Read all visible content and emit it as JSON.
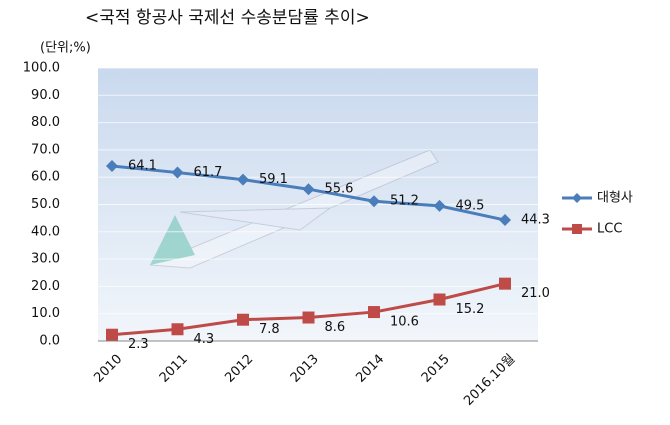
{
  "chart_data": {
    "type": "line",
    "title": "<국적 항공사 국제선 수송분담률 추이>",
    "unit_label": "(단위;%)",
    "categories": [
      "2010",
      "2011",
      "2012",
      "2013",
      "2014",
      "2015",
      "2016.10월"
    ],
    "series": [
      {
        "name": "대형사",
        "color": "#4a7ebb",
        "marker": "diamond",
        "values": [
          64.1,
          61.7,
          59.1,
          55.6,
          51.2,
          49.5,
          44.3
        ]
      },
      {
        "name": "LCC",
        "color": "#be4b48",
        "marker": "square",
        "values": [
          2.3,
          4.3,
          7.8,
          8.6,
          10.6,
          15.2,
          21.0
        ],
        "value_labels": [
          "2.3",
          "4.3",
          "7.8",
          "8.6",
          "10.6",
          "15.2",
          "21.0"
        ]
      }
    ],
    "ylim": [
      0,
      100
    ],
    "yticks": [
      {
        "value": 0,
        "label": "0.0"
      },
      {
        "value": 10,
        "label": "10.0"
      },
      {
        "value": 20,
        "label": "20.0"
      },
      {
        "value": 30,
        "label": "30.0"
      },
      {
        "value": 40,
        "label": "40.0"
      },
      {
        "value": 50,
        "label": "50.0"
      },
      {
        "value": 60,
        "label": "60.0"
      },
      {
        "value": 70,
        "label": "70.0"
      },
      {
        "value": 80,
        "label": "80.0"
      },
      {
        "value": 90,
        "label": "90.0"
      },
      {
        "value": 100,
        "label": "100.0"
      }
    ],
    "grid": true,
    "legend": "right"
  }
}
